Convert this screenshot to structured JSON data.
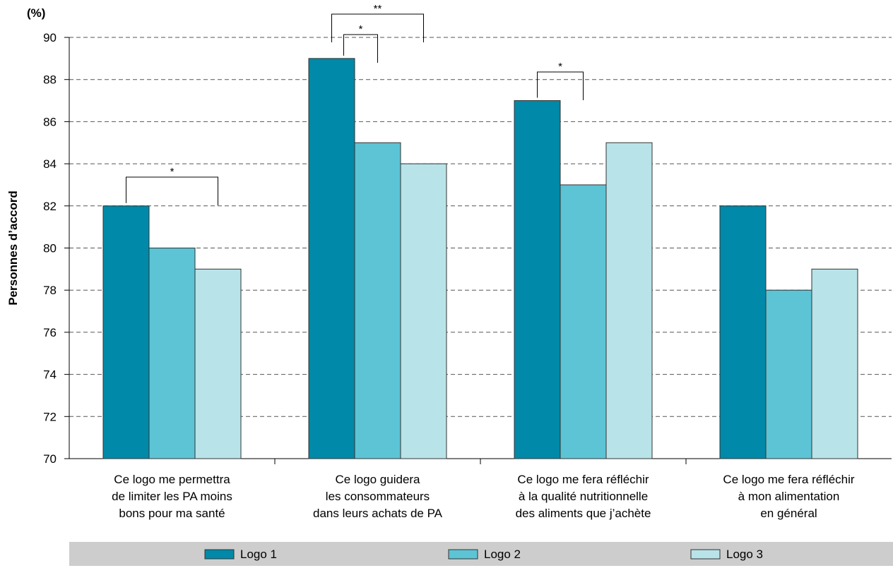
{
  "chart_data": {
    "type": "bar",
    "unit": "(%)",
    "ylabel": "Personnes d’accord",
    "ylim": [
      70,
      90
    ],
    "yticks": [
      70,
      72,
      74,
      76,
      78,
      80,
      82,
      84,
      86,
      88,
      90
    ],
    "grid": "dashed horizontal",
    "legend_position": "bottom",
    "categories": [
      [
        "Ce logo me permettra",
        "de limiter les PA moins",
        "bons pour ma santé"
      ],
      [
        "Ce logo guidera",
        "les consommateurs",
        "dans leurs achats de PA"
      ],
      [
        "Ce logo me fera réfléchir",
        "à la qualité nutritionnelle",
        "des aliments que j’achète"
      ],
      [
        "Ce logo me fera réfléchir",
        "à mon alimentation",
        "en général"
      ]
    ],
    "series": [
      {
        "name": "Logo 1",
        "color": "#0089a8",
        "values": [
          82,
          89,
          87,
          82
        ]
      },
      {
        "name": "Logo 2",
        "color": "#5cc4d5",
        "values": [
          80,
          85,
          83,
          78
        ]
      },
      {
        "name": "Logo 3",
        "color": "#b8e3e9",
        "values": [
          79,
          84,
          85,
          79
        ]
      }
    ],
    "significance": [
      {
        "category": 0,
        "from_series": 0,
        "to_series": 2,
        "label": "*"
      },
      {
        "category": 1,
        "from_series": 0,
        "to_series": 2,
        "label": "**"
      },
      {
        "category": 1,
        "from_series": 0,
        "to_series": 1,
        "label": "*"
      },
      {
        "category": 2,
        "from_series": 0,
        "to_series": 1,
        "label": "*"
      }
    ]
  }
}
